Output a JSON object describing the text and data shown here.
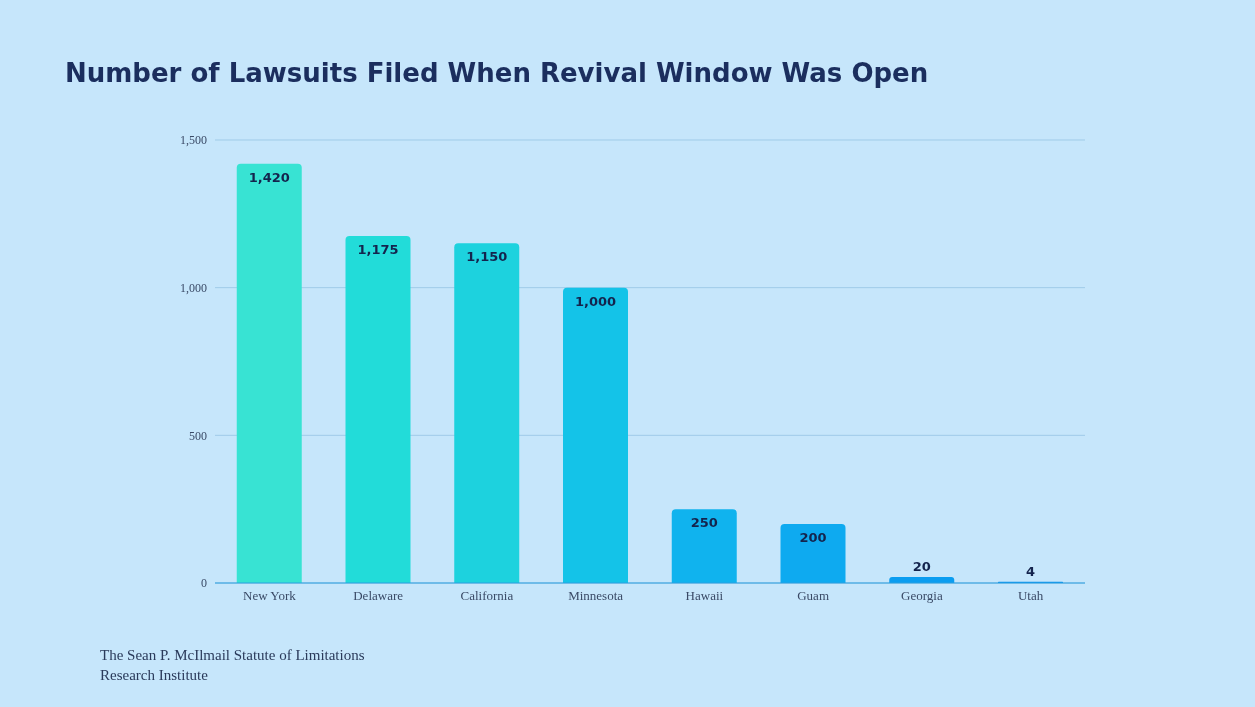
{
  "chart_data": {
    "type": "bar",
    "title": "Number of Lawsuits Filed When Revival Window Was Open",
    "categories": [
      "New York",
      "Delaware",
      "California",
      "Minnesota",
      "Hawaii",
      "Guam",
      "Georgia",
      "Utah"
    ],
    "values": [
      1420,
      1175,
      1150,
      1000,
      250,
      200,
      20,
      4
    ],
    "colors": [
      "#38e3d3",
      "#22dcd9",
      "#1dd2de",
      "#14c3e8",
      "#10b3ee",
      "#0eaaf0",
      "#0b9df0",
      "#0a95ef"
    ],
    "value_labels": [
      "1,420",
      "1,175",
      "1,150",
      "1,000",
      "250",
      "200",
      "20",
      "4"
    ],
    "ylim": [
      0,
      1500
    ],
    "yticks": [
      0,
      500,
      {
        "value": 1000,
        "label": "1,000"
      },
      {
        "value": 1500,
        "label": "1,500"
      }
    ],
    "grid": "y",
    "annotations": [
      "The Sean P. McIlmail Statute of Limitations Research Institute"
    ]
  }
}
